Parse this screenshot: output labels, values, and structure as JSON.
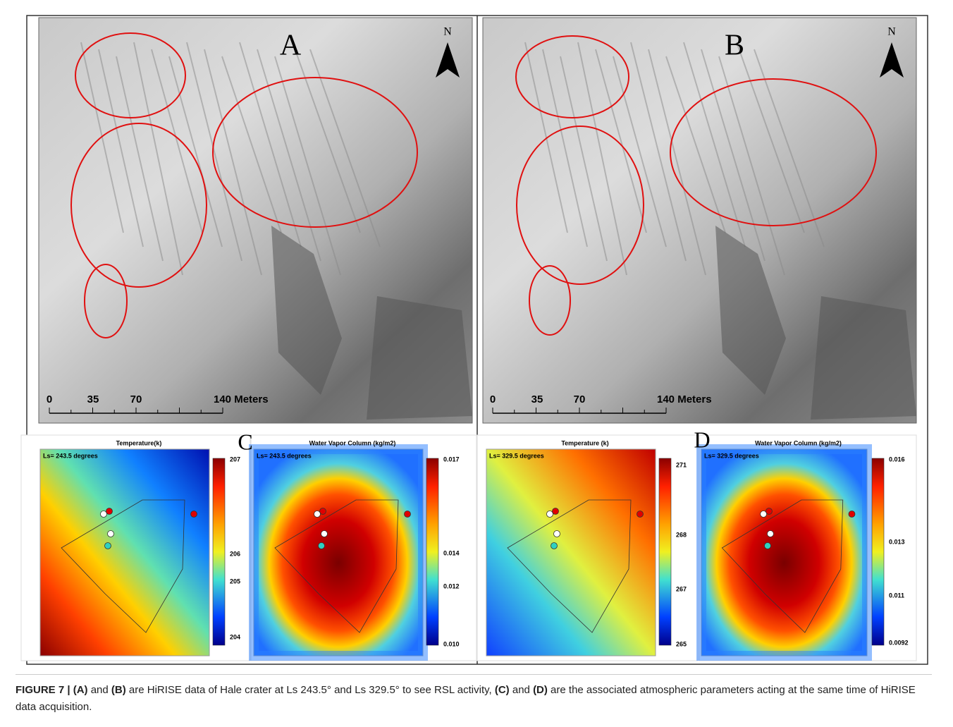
{
  "panels": [
    {
      "letter": "A",
      "north": "N",
      "scale": [
        "0",
        "35",
        "70",
        "140 Meters"
      ]
    },
    {
      "letter": "B",
      "north": "N",
      "scale": [
        "0",
        "35",
        "70",
        "140 Meters"
      ]
    }
  ],
  "maps": [
    {
      "letter": "C",
      "temperature": {
        "title": "Temperature(k)",
        "ls": "Ls= 243.5 degrees",
        "colorbar": [
          "207",
          "206",
          "205",
          "204"
        ]
      },
      "vapor": {
        "title": "Water Vapor Column (kg/m2)",
        "ls": "Ls= 243.5 degrees",
        "colorbar": [
          "0.017",
          "0.014",
          "0.012",
          "0.010"
        ]
      }
    },
    {
      "letter": "D",
      "temperature": {
        "title": "Temperature (k)",
        "ls": "Ls= 329.5 degrees",
        "colorbar": [
          "271",
          "268",
          "267",
          "265"
        ]
      },
      "vapor": {
        "title": "Water Vapor Column (kg/m2)",
        "ls": "Ls= 329.5 degrees",
        "colorbar": [
          "0.016",
          "0.013",
          "0.011",
          "0.0092"
        ]
      }
    }
  ],
  "caption": [
    {
      "text": "FIGURE 7 | (A)",
      "bold": true
    },
    {
      "text": " and ",
      "bold": false
    },
    {
      "text": "(B)",
      "bold": true
    },
    {
      "text": " are HiRISE data of Hale crater at Ls 243.5° and Ls 329.5° to see RSL activity, ",
      "bold": false
    },
    {
      "text": "(C)",
      "bold": true
    },
    {
      "text": " and ",
      "bold": false
    },
    {
      "text": "(D)",
      "bold": true
    },
    {
      "text": " are the associated atmospheric parameters acting at the same time of HiRISE data acquisition.",
      "bold": false
    }
  ]
}
